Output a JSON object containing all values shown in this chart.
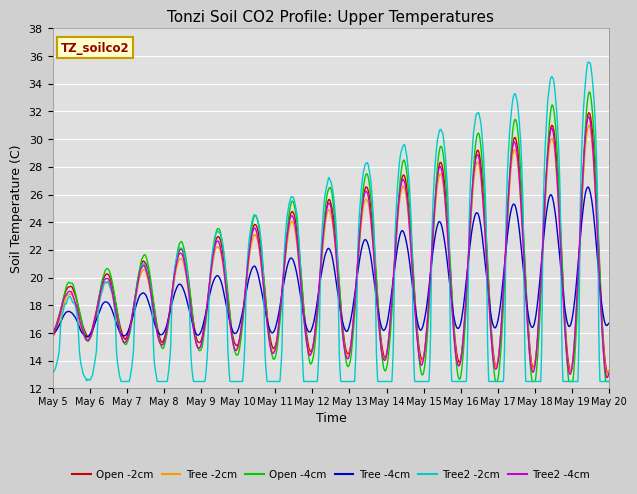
{
  "title": "Tonzi Soil CO2 Profile: Upper Temperatures",
  "xlabel": "Time",
  "ylabel": "Soil Temperature (C)",
  "ylim": [
    12,
    38
  ],
  "xlim": [
    0,
    15
  ],
  "yticks": [
    12,
    14,
    16,
    18,
    20,
    22,
    24,
    26,
    28,
    30,
    32,
    34,
    36,
    38
  ],
  "xtick_labels": [
    "May 5",
    "May 6",
    "May 7",
    "May 8",
    "May 9",
    "May 10",
    "May 11",
    "May 12",
    "May 13",
    "May 14",
    "May 15",
    "May 16",
    "May 17",
    "May 18",
    "May 19",
    "May 20"
  ],
  "legend_labels": [
    "Open -2cm",
    "Tree -2cm",
    "Open -4cm",
    "Tree -4cm",
    "Tree2 -2cm",
    "Tree2 -4cm"
  ],
  "legend_colors": [
    "#cc0000",
    "#ff9900",
    "#00cc00",
    "#0000cc",
    "#00cccc",
    "#cc00cc"
  ],
  "fig_bg_color": "#d0d0d0",
  "plot_bg": "#e0e0e0",
  "grid_color": "#ffffff",
  "title_fontsize": 11,
  "box_label": "TZ_soilco2",
  "box_text_color": "#990000",
  "box_bg_color": "#ffffcc",
  "box_border_color": "#cc9900"
}
